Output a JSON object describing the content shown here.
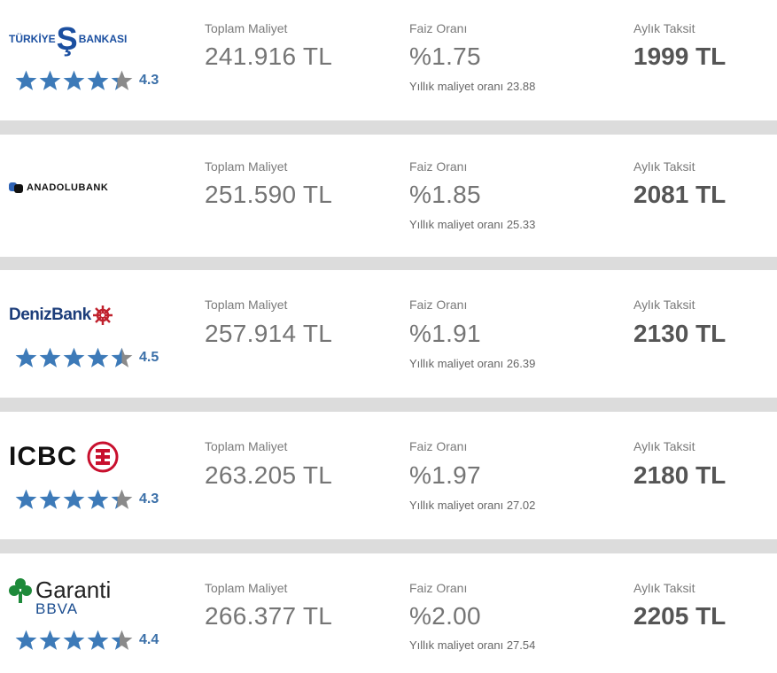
{
  "offers": [
    {
      "bank": {
        "name_parts": [
          "TÜRKİYE",
          "İŞ",
          "BANKASI"
        ],
        "logo_icon": "isbank-logo"
      },
      "rating": {
        "value": 4.3,
        "label": "4.3",
        "full": 4,
        "partial": 0.3
      },
      "total_cost": {
        "label": "Toplam Maliyet",
        "value": "241.916 TL"
      },
      "interest": {
        "label": "Faiz Oranı",
        "value": "%1.75",
        "annual": "Yıllık maliyet oranı 23.88"
      },
      "monthly": {
        "label": "Aylık Taksit",
        "value": "1999 TL"
      }
    },
    {
      "bank": {
        "name": "ANADOLUBANK",
        "logo_icon": "anadolubank-logo"
      },
      "rating": null,
      "total_cost": {
        "label": "Toplam Maliyet",
        "value": "251.590 TL"
      },
      "interest": {
        "label": "Faiz Oranı",
        "value": "%1.85",
        "annual": "Yıllık maliyet oranı 25.33"
      },
      "monthly": {
        "label": "Aylık Taksit",
        "value": "2081 TL"
      }
    },
    {
      "bank": {
        "name": "DenizBank",
        "logo_icon": "denizbank-logo"
      },
      "rating": {
        "value": 4.5,
        "label": "4.5",
        "full": 4,
        "partial": 0.5
      },
      "total_cost": {
        "label": "Toplam Maliyet",
        "value": "257.914 TL"
      },
      "interest": {
        "label": "Faiz Oranı",
        "value": "%1.91",
        "annual": "Yıllık maliyet oranı 26.39"
      },
      "monthly": {
        "label": "Aylık Taksit",
        "value": "2130 TL"
      }
    },
    {
      "bank": {
        "name": "ICBC",
        "logo_icon": "icbc-logo"
      },
      "rating": {
        "value": 4.3,
        "label": "4.3",
        "full": 4,
        "partial": 0.3
      },
      "total_cost": {
        "label": "Toplam Maliyet",
        "value": "263.205 TL"
      },
      "interest": {
        "label": "Faiz Oranı",
        "value": "%1.97",
        "annual": "Yıllık maliyet oranı 27.02"
      },
      "monthly": {
        "label": "Aylık Taksit",
        "value": "2180 TL"
      }
    },
    {
      "bank": {
        "name_parts": [
          "Garanti",
          "BBVA"
        ],
        "logo_icon": "garanti-bbva-logo"
      },
      "rating": {
        "value": 4.4,
        "label": "4.4",
        "full": 4,
        "partial": 0.4
      },
      "total_cost": {
        "label": "Toplam Maliyet",
        "value": "266.377 TL"
      },
      "interest": {
        "label": "Faiz Oranı",
        "value": "%2.00",
        "annual": "Yıllık maliyet oranı 27.54"
      },
      "monthly": {
        "label": "Aylık Taksit",
        "value": "2205 TL"
      }
    }
  ],
  "colors": {
    "star_filled": "#3d7ab8",
    "star_empty": "#8a8a8a",
    "rating_text": "#3a6fa8",
    "separator": "#dcdcdc"
  }
}
